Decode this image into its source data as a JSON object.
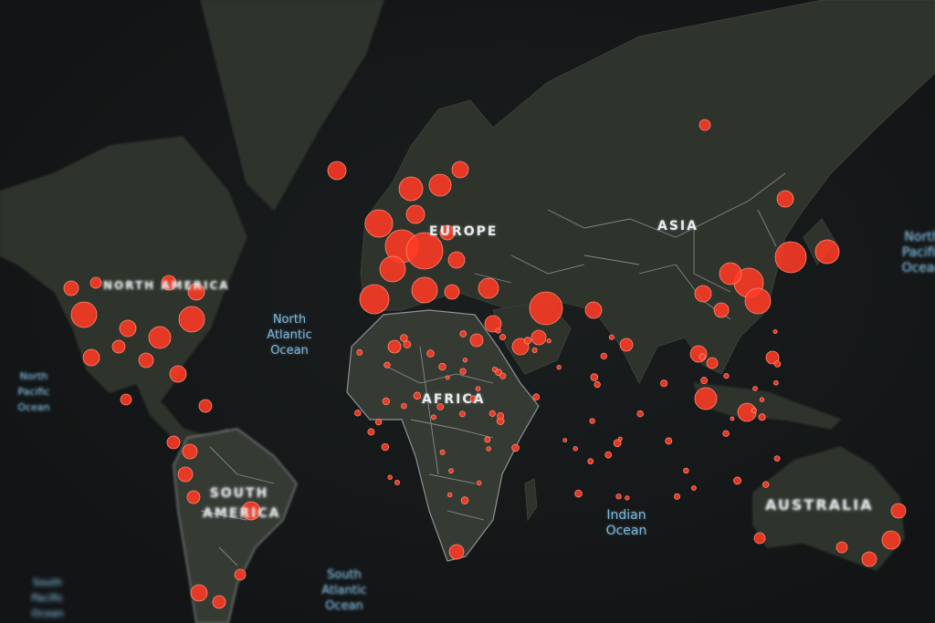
{
  "map": {
    "theme": "dark",
    "colors": {
      "background": "#141617",
      "land": "#2e332c",
      "marker": "#ff3a26",
      "ocean_label": "#7fb6d8",
      "continent_label": "#e8ecef"
    },
    "continents": {
      "north_america": "NORTH AMERICA",
      "europe": "EUROPE",
      "asia": "ASIA",
      "africa": "AFRICA",
      "south_america": "SOUTH AMERICA",
      "australia": "AUSTRALIA"
    },
    "oceans": {
      "north_atlantic": "North Atlantic Ocean",
      "north_pacific_left": "North Pacific Ocean",
      "north_pacific_right": "North Pacific Ocean",
      "indian": "Indian Ocean",
      "south_atlantic": "South Atlantic Ocean",
      "south_pacific": "South Pacific Ocean"
    },
    "marker_icon": "red-circle"
  }
}
